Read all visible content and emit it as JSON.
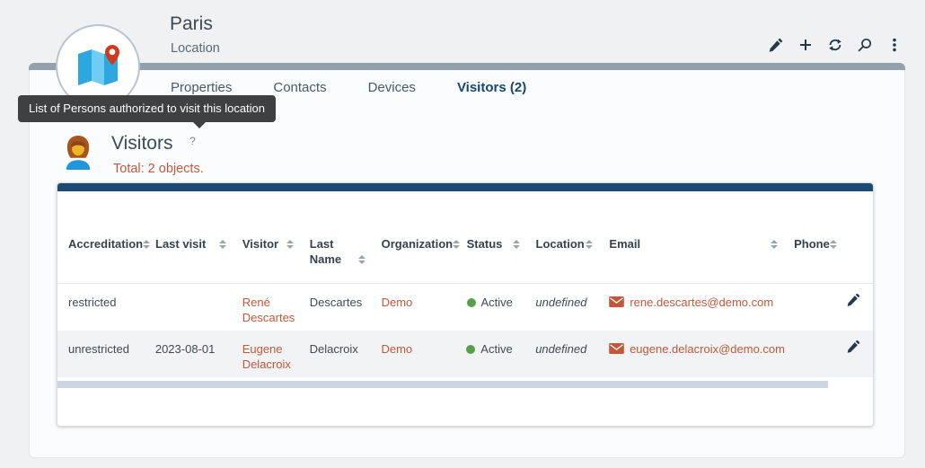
{
  "page": {
    "title": "Paris",
    "subtitle": "Location",
    "tooltip": "List of Persons authorized to visit this location"
  },
  "top_toolbar": {
    "icons": [
      "edit",
      "add",
      "refresh",
      "search",
      "menu"
    ]
  },
  "tabs": [
    {
      "label": "Properties",
      "active": false
    },
    {
      "label": "Contacts",
      "active": false
    },
    {
      "label": "Devices",
      "active": false
    },
    {
      "label": "Visitors (2)",
      "active": true
    }
  ],
  "section": {
    "title": "Visitors",
    "help": "?",
    "total": {
      "prefix": "Total:",
      "count": "2",
      "suffix": "objects."
    },
    "toolbar_icons": [
      "add",
      "refresh",
      "menu"
    ]
  },
  "table": {
    "columns": [
      {
        "label": "Accreditation",
        "sortable": true
      },
      {
        "label": "Last visit",
        "sortable": true
      },
      {
        "label": "Visitor",
        "sortable": true
      },
      {
        "label": "Last Name",
        "sortable": true
      },
      {
        "label": "Organization",
        "sortable": true
      },
      {
        "label": "Status",
        "sortable": true
      },
      {
        "label": "Location",
        "sortable": true
      },
      {
        "label": "Email",
        "sortable": true
      },
      {
        "label": "Phone",
        "sortable": true
      }
    ],
    "rows": [
      {
        "accreditation": "restricted",
        "last_visit": "",
        "visitor": "René Descartes",
        "last_name": "Descartes",
        "organization": "Demo",
        "status": "Active",
        "location": "undefined",
        "email": "rene.descartes@demo.com",
        "phone": ""
      },
      {
        "accreditation": "unrestricted",
        "last_visit": "2023-08-01",
        "visitor": "Eugene Delacroix",
        "last_name": "Delacroix",
        "organization": "Demo",
        "status": "Active",
        "location": "undefined",
        "email": "eugene.delacroix@demo.com",
        "phone": ""
      }
    ]
  },
  "colors": {
    "accent": "#c2583a",
    "status_active": "#55a048",
    "navy": "#1d4a74",
    "tab_active": "#17466f",
    "icon": "#24384c"
  }
}
